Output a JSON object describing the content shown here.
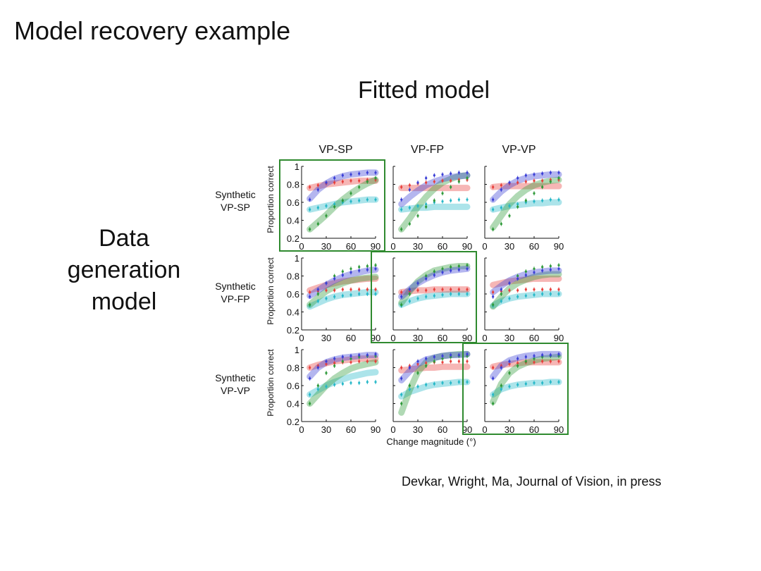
{
  "slide": {
    "title": "Model recovery example",
    "fitted_label": "Fitted model",
    "data_gen_lines": [
      "Data",
      "generation",
      "model"
    ],
    "citation": "Devkar, Wright, Ma, Journal of Vision, in press"
  },
  "chart_data": {
    "type": "line",
    "title": "Model recovery example",
    "xlabel": "Change magnitude (°)",
    "ylabel": "Proportion correct",
    "x": [
      10,
      20,
      30,
      40,
      50,
      60,
      70,
      80,
      90
    ],
    "xticks": [
      0,
      30,
      60,
      90
    ],
    "xlim": [
      0,
      90
    ],
    "column_headers": [
      "VP-SP",
      "VP-FP",
      "VP-VP"
    ],
    "row_headers": [
      [
        "Synthetic",
        "VP-SP"
      ],
      [
        "Synthetic",
        "VP-FP"
      ],
      [
        "Synthetic",
        "VP-VP"
      ]
    ],
    "highlighted_diagonal": true,
    "colors": {
      "red": "#e8403c",
      "blue": "#3b3fd6",
      "green": "#2f9a3a",
      "cyan": "#26b8c8",
      "frame": "#2f8a2f"
    },
    "rows": [
      {
        "ylim": [
          0.2,
          1.0
        ],
        "yticks": [
          0.2,
          0.4,
          0.6,
          0.8,
          1.0
        ],
        "ytick_labels": [
          "0.2",
          "0.4",
          "0.6",
          "0.8",
          "1"
        ],
        "data": {
          "red": [
            0.77,
            0.79,
            0.81,
            0.82,
            0.83,
            0.84,
            0.84,
            0.85,
            0.85
          ],
          "blue": [
            0.63,
            0.74,
            0.82,
            0.87,
            0.9,
            0.91,
            0.92,
            0.93,
            0.93
          ],
          "green": [
            0.3,
            0.36,
            0.45,
            0.55,
            0.62,
            0.7,
            0.77,
            0.83,
            0.87
          ],
          "cyan": [
            0.52,
            0.54,
            0.56,
            0.58,
            0.6,
            0.61,
            0.62,
            0.63,
            0.63
          ]
        },
        "fits": [
          {
            "red": [
              0.76,
              0.78,
              0.8,
              0.81,
              0.82,
              0.83,
              0.84,
              0.84,
              0.84
            ],
            "blue": [
              0.64,
              0.74,
              0.81,
              0.86,
              0.89,
              0.91,
              0.92,
              0.93,
              0.93
            ],
            "green": [
              0.3,
              0.38,
              0.46,
              0.55,
              0.63,
              0.7,
              0.76,
              0.81,
              0.85
            ],
            "cyan": [
              0.52,
              0.54,
              0.56,
              0.58,
              0.6,
              0.61,
              0.62,
              0.63,
              0.63
            ]
          },
          {
            "red": [
              0.76,
              0.76,
              0.76,
              0.76,
              0.76,
              0.76,
              0.76,
              0.76,
              0.76
            ],
            "blue": [
              0.58,
              0.66,
              0.73,
              0.79,
              0.83,
              0.86,
              0.88,
              0.89,
              0.9
            ],
            "green": [
              0.3,
              0.42,
              0.55,
              0.66,
              0.75,
              0.82,
              0.86,
              0.89,
              0.9
            ],
            "cyan": [
              0.52,
              0.53,
              0.54,
              0.54,
              0.55,
              0.55,
              0.55,
              0.55,
              0.55
            ]
          },
          {
            "red": [
              0.77,
              0.78,
              0.78,
              0.78,
              0.78,
              0.78,
              0.78,
              0.78,
              0.78
            ],
            "blue": [
              0.63,
              0.72,
              0.79,
              0.84,
              0.87,
              0.89,
              0.9,
              0.91,
              0.91
            ],
            "green": [
              0.32,
              0.45,
              0.58,
              0.67,
              0.74,
              0.79,
              0.82,
              0.84,
              0.85
            ],
            "cyan": [
              0.52,
              0.54,
              0.56,
              0.57,
              0.58,
              0.59,
              0.59,
              0.6,
              0.6
            ]
          }
        ]
      },
      {
        "ylim": [
          0.2,
          1.0
        ],
        "yticks": [
          0.2,
          0.4,
          0.6,
          0.8,
          1.0
        ],
        "ytick_labels": [
          "0.2",
          "0.4",
          "0.6",
          "0.8",
          "1"
        ],
        "data": {
          "red": [
            0.62,
            0.63,
            0.64,
            0.64,
            0.65,
            0.65,
            0.65,
            0.65,
            0.65
          ],
          "blue": [
            0.57,
            0.65,
            0.72,
            0.77,
            0.81,
            0.84,
            0.86,
            0.87,
            0.88
          ],
          "green": [
            0.48,
            0.6,
            0.72,
            0.8,
            0.85,
            0.88,
            0.9,
            0.91,
            0.92
          ],
          "cyan": [
            0.47,
            0.52,
            0.55,
            0.57,
            0.58,
            0.59,
            0.6,
            0.6,
            0.6
          ]
        },
        "fits": [
          {
            "red": [
              0.64,
              0.67,
              0.7,
              0.72,
              0.74,
              0.75,
              0.76,
              0.77,
              0.77
            ],
            "blue": [
              0.58,
              0.64,
              0.7,
              0.75,
              0.79,
              0.82,
              0.84,
              0.86,
              0.87
            ],
            "green": [
              0.48,
              0.56,
              0.63,
              0.68,
              0.72,
              0.75,
              0.77,
              0.78,
              0.79
            ],
            "cyan": [
              0.46,
              0.5,
              0.54,
              0.57,
              0.59,
              0.6,
              0.61,
              0.62,
              0.62
            ]
          },
          {
            "red": [
              0.62,
              0.63,
              0.64,
              0.64,
              0.65,
              0.65,
              0.65,
              0.65,
              0.65
            ],
            "blue": [
              0.57,
              0.65,
              0.72,
              0.77,
              0.81,
              0.84,
              0.86,
              0.87,
              0.88
            ],
            "green": [
              0.5,
              0.63,
              0.74,
              0.81,
              0.86,
              0.88,
              0.9,
              0.91,
              0.91
            ],
            "cyan": [
              0.48,
              0.52,
              0.55,
              0.57,
              0.58,
              0.59,
              0.6,
              0.6,
              0.6
            ]
          },
          {
            "red": [
              0.7,
              0.72,
              0.74,
              0.75,
              0.76,
              0.77,
              0.77,
              0.77,
              0.77
            ],
            "blue": [
              0.62,
              0.69,
              0.75,
              0.79,
              0.82,
              0.84,
              0.85,
              0.86,
              0.86
            ],
            "green": [
              0.46,
              0.57,
              0.66,
              0.72,
              0.76,
              0.79,
              0.81,
              0.82,
              0.82
            ],
            "cyan": [
              0.47,
              0.52,
              0.55,
              0.57,
              0.58,
              0.59,
              0.6,
              0.6,
              0.6
            ]
          }
        ]
      },
      {
        "ylim": [
          0.2,
          1.0
        ],
        "yticks": [
          0.2,
          0.4,
          0.6,
          0.8,
          1.0
        ],
        "ytick_labels": [
          "0.2",
          "0.4",
          "0.6",
          "0.8",
          "1"
        ],
        "data": {
          "red": [
            0.8,
            0.82,
            0.84,
            0.85,
            0.86,
            0.86,
            0.87,
            0.87,
            0.87
          ],
          "blue": [
            0.68,
            0.8,
            0.87,
            0.9,
            0.92,
            0.93,
            0.94,
            0.94,
            0.95
          ],
          "green": [
            0.4,
            0.6,
            0.74,
            0.82,
            0.87,
            0.9,
            0.92,
            0.93,
            0.93
          ],
          "cyan": [
            0.5,
            0.56,
            0.59,
            0.61,
            0.62,
            0.63,
            0.63,
            0.64,
            0.64
          ]
        },
        "fits": [
          {
            "red": [
              0.8,
              0.83,
              0.85,
              0.87,
              0.88,
              0.89,
              0.9,
              0.9,
              0.9
            ],
            "blue": [
              0.7,
              0.8,
              0.86,
              0.89,
              0.91,
              0.92,
              0.93,
              0.94,
              0.94
            ],
            "green": [
              0.4,
              0.5,
              0.6,
              0.68,
              0.74,
              0.79,
              0.82,
              0.84,
              0.86
            ],
            "cyan": [
              0.5,
              0.55,
              0.6,
              0.64,
              0.67,
              0.7,
              0.72,
              0.74,
              0.75
            ]
          },
          {
            "red": [
              0.77,
              0.78,
              0.79,
              0.8,
              0.8,
              0.81,
              0.81,
              0.81,
              0.81
            ],
            "blue": [
              0.66,
              0.76,
              0.84,
              0.89,
              0.91,
              0.93,
              0.94,
              0.94,
              0.95
            ],
            "green": [
              0.3,
              0.55,
              0.75,
              0.86,
              0.91,
              0.93,
              0.94,
              0.95,
              0.95
            ],
            "cyan": [
              0.48,
              0.53,
              0.56,
              0.59,
              0.61,
              0.62,
              0.63,
              0.64,
              0.64
            ]
          },
          {
            "red": [
              0.81,
              0.83,
              0.84,
              0.85,
              0.86,
              0.86,
              0.86,
              0.86,
              0.86
            ],
            "blue": [
              0.7,
              0.82,
              0.88,
              0.91,
              0.93,
              0.94,
              0.95,
              0.95,
              0.95
            ],
            "green": [
              0.42,
              0.62,
              0.74,
              0.81,
              0.85,
              0.88,
              0.9,
              0.91,
              0.92
            ],
            "cyan": [
              0.5,
              0.56,
              0.59,
              0.61,
              0.62,
              0.63,
              0.63,
              0.64,
              0.64
            ]
          }
        ]
      }
    ]
  }
}
